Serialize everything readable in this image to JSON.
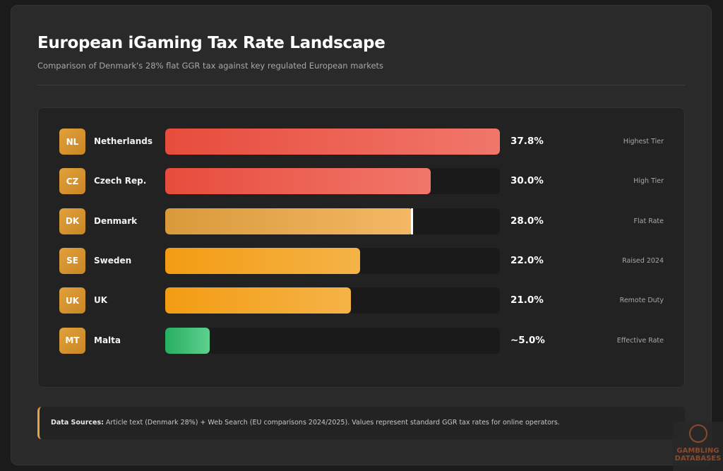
{
  "header": {
    "title": "European iGaming Tax Rate Landscape",
    "subtitle": "Comparison of Denmark's 28% flat GGR tax against key regulated European markets"
  },
  "chart_data": {
    "type": "bar",
    "orientation": "horizontal",
    "xlim": [
      0,
      37.8
    ],
    "categories": [
      "Netherlands",
      "Czech Rep.",
      "Denmark",
      "Sweden",
      "UK",
      "Malta"
    ],
    "codes": [
      "NL",
      "CZ",
      "DK",
      "SE",
      "UK",
      "MT"
    ],
    "values": [
      37.8,
      30.0,
      28.0,
      22.0,
      21.0,
      5.0
    ],
    "value_labels": [
      "37.8%",
      "30.0%",
      "28.0%",
      "22.0%",
      "21.0%",
      "~5.0%"
    ],
    "notes": [
      "Highest Tier",
      "High Tier",
      "Flat Rate",
      "Raised 2024",
      "Remote Duty",
      "Effective Rate"
    ],
    "colors": [
      [
        "#e74c3c",
        "#f1776b"
      ],
      [
        "#e74c3c",
        "#f1776b"
      ],
      [
        "#d99a3b",
        "#f4b865"
      ],
      [
        "#f39c12",
        "#f5b347"
      ],
      [
        "#f39c12",
        "#f5b347"
      ],
      [
        "#27ae60",
        "#5fd08f"
      ]
    ],
    "highlight": "Denmark"
  },
  "sources": {
    "label": "Data Sources:",
    "text": " Article text (Denmark 28%) + Web Search (EU comparisons 2024/2025). Values represent standard GGR tax rates for online operators."
  },
  "watermark": {
    "text": "GAMBLING DATABASES"
  }
}
